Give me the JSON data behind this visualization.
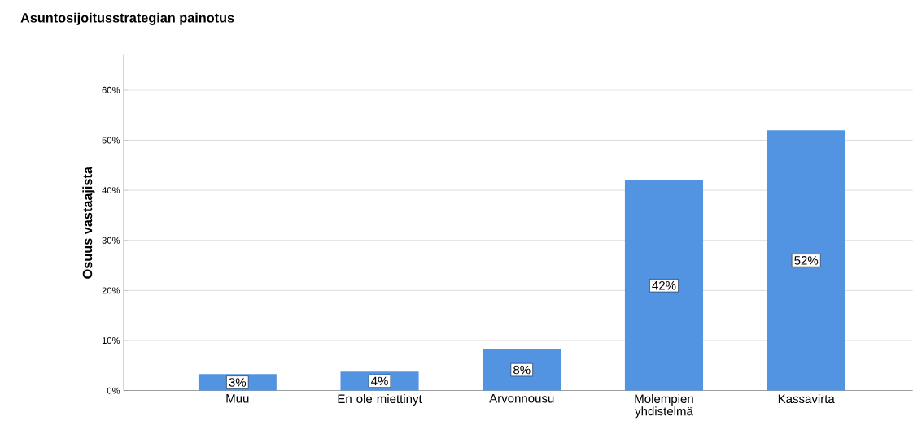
{
  "chart_data": {
    "type": "bar",
    "title": "Asuntosijoitusstrategian painotus",
    "ylabel": "Osuus vastaajista",
    "categories": [
      "Muu",
      "En ole miettinyt",
      "Arvonnousu",
      "Molempien yhdistelmä",
      "Kassavirta"
    ],
    "values": [
      3.3,
      3.8,
      8.3,
      42,
      52
    ],
    "value_labels": [
      "3%",
      "4%",
      "8%",
      "42%",
      "52%"
    ],
    "color": "#5294e2",
    "ylim": [
      0,
      67
    ],
    "yticks": [
      {
        "value": 0,
        "label": "0%"
      },
      {
        "value": 10,
        "label": "10%"
      },
      {
        "value": 20,
        "label": "20%"
      },
      {
        "value": 30,
        "label": "30%"
      },
      {
        "value": 40,
        "label": "40%"
      },
      {
        "value": 50,
        "label": "50%"
      },
      {
        "value": 60,
        "label": "60%"
      }
    ],
    "grid": "y"
  }
}
